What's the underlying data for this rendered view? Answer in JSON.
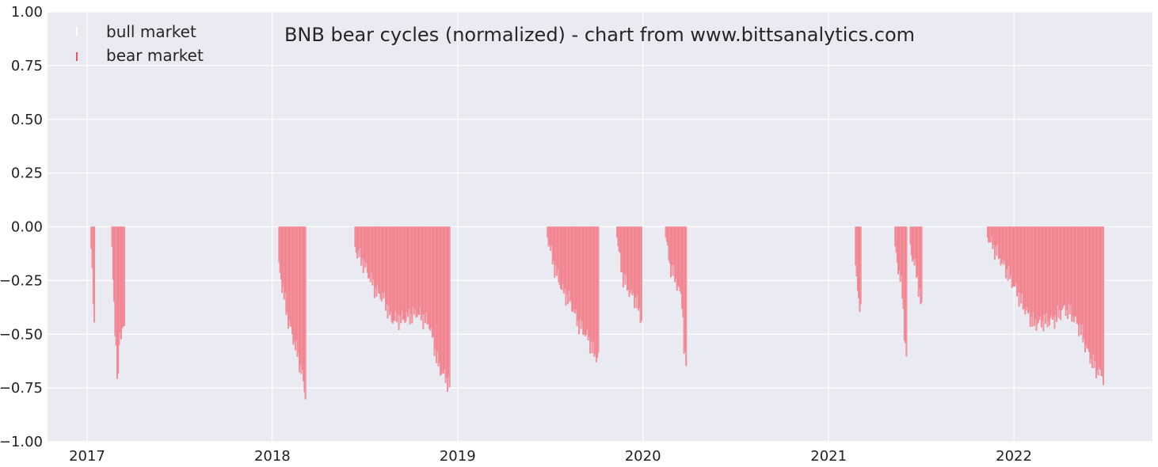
{
  "chart_data": {
    "type": "bar",
    "title": "BNB bear cycles (normalized)  - chart from www.bittsanalytics.com",
    "xlabel": "",
    "ylabel": "",
    "x_range": [
      "2016-10-15",
      "2022-10-01"
    ],
    "x_tick_labels": [
      {
        "date": "2017-01-01",
        "label": "2017"
      },
      {
        "date": "2018-01-01",
        "label": "2018"
      },
      {
        "date": "2019-01-01",
        "label": "2019"
      },
      {
        "date": "2020-01-01",
        "label": "2020"
      },
      {
        "date": "2021-01-01",
        "label": "2021"
      },
      {
        "date": "2022-01-01",
        "label": "2022"
      }
    ],
    "ylim": [
      -1.0,
      1.0
    ],
    "y_ticks": [
      1.0,
      0.75,
      0.5,
      0.25,
      0.0,
      -0.25,
      -0.5,
      -0.75,
      -1.0
    ],
    "y_tick_labels": [
      "1.00",
      "0.75",
      "0.50",
      "0.25",
      "0.00",
      "−0.25",
      "−0.50",
      "−0.75",
      "−1.00"
    ],
    "grid": true,
    "legend_position": "top-left",
    "background_color": "#eaeaf2",
    "grid_color": "#ffffff",
    "series": [
      {
        "name": "bull market",
        "color": "#ffffff",
        "values": []
      },
      {
        "name": "bear market",
        "color": "#f7949f",
        "edge_color": "#e06070",
        "bear_periods": [
          {
            "start": "2017-01-06",
            "end": "2017-01-15",
            "profile": [
              [
                0,
                0.0
              ],
              [
                0.4,
                -0.2
              ],
              [
                1,
                -0.51
              ]
            ]
          },
          {
            "start": "2017-02-16",
            "end": "2017-03-15",
            "profile": [
              [
                0,
                0.0
              ],
              [
                0.35,
                -0.55
              ],
              [
                0.5,
                -0.78
              ],
              [
                0.6,
                -0.5
              ],
              [
                1,
                -0.47
              ]
            ]
          },
          {
            "start": "2018-01-13",
            "end": "2018-03-07",
            "profile": [
              [
                0,
                -0.18
              ],
              [
                0.15,
                -0.3
              ],
              [
                0.35,
                -0.44
              ],
              [
                0.6,
                -0.55
              ],
              [
                0.85,
                -0.68
              ],
              [
                1,
                -0.81
              ]
            ]
          },
          {
            "start": "2018-06-12",
            "end": "2018-12-16",
            "profile": [
              [
                0,
                -0.1
              ],
              [
                0.1,
                -0.18
              ],
              [
                0.22,
                -0.3
              ],
              [
                0.3,
                -0.33
              ],
              [
                0.38,
                -0.43
              ],
              [
                0.5,
                -0.43
              ],
              [
                0.65,
                -0.4
              ],
              [
                0.78,
                -0.45
              ],
              [
                0.88,
                -0.65
              ],
              [
                1,
                -0.74
              ]
            ]
          },
          {
            "start": "2019-06-26",
            "end": "2019-10-05",
            "profile": [
              [
                0,
                -0.05
              ],
              [
                0.15,
                -0.2
              ],
              [
                0.3,
                -0.3
              ],
              [
                0.45,
                -0.35
              ],
              [
                0.6,
                -0.45
              ],
              [
                0.75,
                -0.5
              ],
              [
                0.85,
                -0.55
              ],
              [
                0.92,
                -0.6
              ],
              [
                1,
                -0.6
              ]
            ]
          },
          {
            "start": "2019-11-10",
            "end": "2019-12-28",
            "profile": [
              [
                0,
                -0.05
              ],
              [
                0.2,
                -0.22
              ],
              [
                0.5,
                -0.3
              ],
              [
                0.8,
                -0.35
              ],
              [
                1,
                -0.43
              ]
            ]
          },
          {
            "start": "2020-02-14",
            "end": "2020-03-26",
            "profile": [
              [
                0,
                -0.05
              ],
              [
                0.2,
                -0.18
              ],
              [
                0.5,
                -0.25
              ],
              [
                0.8,
                -0.35
              ],
              [
                0.9,
                -0.62
              ],
              [
                1,
                -0.64
              ]
            ]
          },
          {
            "start": "2021-02-22",
            "end": "2021-03-04",
            "profile": [
              [
                0,
                -0.2
              ],
              [
                0.5,
                -0.32
              ],
              [
                1,
                -0.38
              ]
            ]
          },
          {
            "start": "2021-05-11",
            "end": "2021-06-03",
            "profile": [
              [
                0,
                -0.1
              ],
              [
                0.3,
                -0.2
              ],
              [
                0.6,
                -0.3
              ],
              [
                0.85,
                -0.55
              ],
              [
                1,
                -0.62
              ]
            ]
          },
          {
            "start": "2021-06-10",
            "end": "2021-07-02",
            "profile": [
              [
                0,
                -0.1
              ],
              [
                0.5,
                -0.2
              ],
              [
                0.8,
                -0.3
              ],
              [
                1,
                -0.39
              ]
            ]
          },
          {
            "start": "2021-11-09",
            "end": "2022-06-26",
            "profile": [
              [
                0,
                -0.05
              ],
              [
                0.08,
                -0.12
              ],
              [
                0.16,
                -0.2
              ],
              [
                0.25,
                -0.3
              ],
              [
                0.32,
                -0.38
              ],
              [
                0.4,
                -0.45
              ],
              [
                0.5,
                -0.44
              ],
              [
                0.58,
                -0.43
              ],
              [
                0.65,
                -0.38
              ],
              [
                0.72,
                -0.4
              ],
              [
                0.8,
                -0.48
              ],
              [
                0.86,
                -0.58
              ],
              [
                0.93,
                -0.66
              ],
              [
                1,
                -0.7
              ]
            ]
          }
        ]
      }
    ]
  }
}
